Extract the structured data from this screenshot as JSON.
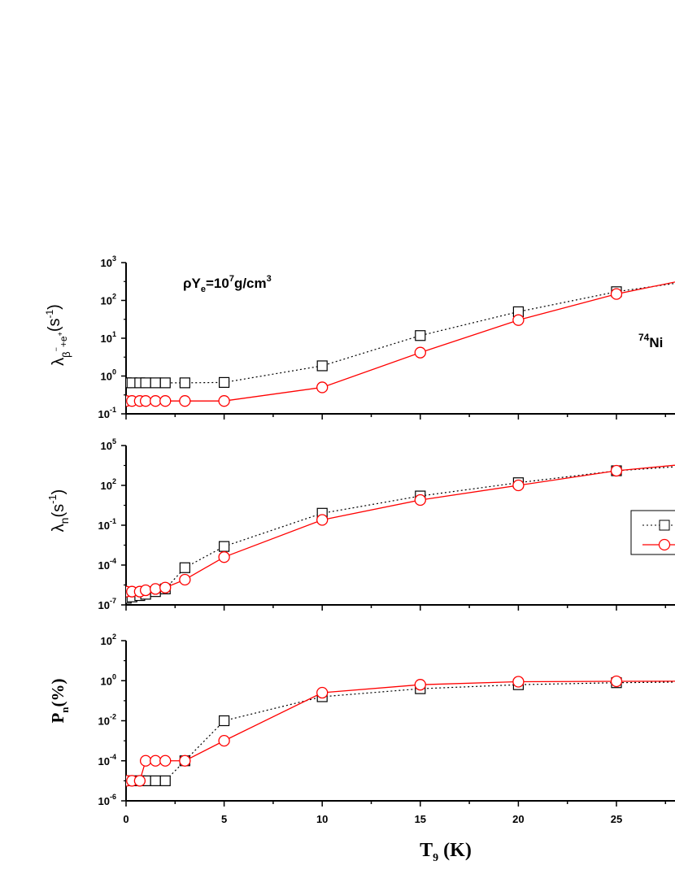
{
  "chart_data": [
    {
      "type": "line",
      "panel": "top",
      "ylabel": "λβ⁻+e⁺(s⁻¹)",
      "ylabel_parts": {
        "base": "λ",
        "sub1": "β",
        "sub1sup": "−",
        "sub_mid": "+e",
        "sub2sup": "+",
        "paren_open": "(s",
        "unit_sup": "-1",
        "paren_close": ")"
      },
      "yscale": "log",
      "ylim_exp": [
        -1,
        3
      ],
      "yticks_exp": [
        -1,
        0,
        1,
        2,
        3
      ],
      "annotations": [
        "ρYe=10⁷g/cm³",
        "⁷⁴Ni"
      ],
      "annotation_parts": {
        "density": {
          "base": "ρY",
          "sub": "e",
          "mid": "=10",
          "sup": "7",
          "rest": "g/cm",
          "sup2": "3"
        },
        "nucleus": {
          "sup": "74",
          "base": "Ni"
        }
      },
      "series": [
        {
          "marker": "square",
          "style": "dotted",
          "color": "#000000",
          "x": [
            0.01,
            0.3,
            0.7,
            1,
            1.5,
            2,
            3,
            5,
            10,
            15,
            20,
            25,
            30
          ],
          "y_exp": [
            -0.18,
            -0.18,
            -0.18,
            -0.18,
            -0.18,
            -0.18,
            -0.18,
            -0.17,
            0.27,
            1.07,
            1.7,
            2.23,
            2.6
          ]
        },
        {
          "marker": "circle",
          "style": "solid",
          "color": "#ff0000",
          "x": [
            0.01,
            0.3,
            0.7,
            1,
            1.5,
            2,
            3,
            5,
            10,
            15,
            20,
            25,
            30
          ],
          "y_exp": [
            -0.66,
            -0.66,
            -0.66,
            -0.66,
            -0.66,
            -0.66,
            -0.66,
            -0.66,
            -0.3,
            0.62,
            1.48,
            2.17,
            2.7
          ]
        }
      ]
    },
    {
      "type": "line",
      "panel": "middle",
      "ylabel": "λn(s⁻¹)",
      "ylabel_parts": {
        "base": "λ",
        "sub": "n",
        "paren_open": "(s",
        "unit_sup": "-1",
        "paren_close": ")"
      },
      "yscale": "log",
      "ylim_exp": [
        -7,
        5
      ],
      "yticks_exp": [
        -7,
        -4,
        -1,
        2,
        5
      ],
      "series": [
        {
          "marker": "square",
          "style": "dotted",
          "color": "#000000",
          "x": [
            0.01,
            0.3,
            0.7,
            1,
            1.5,
            2,
            3,
            5,
            10,
            15,
            20,
            25,
            30
          ],
          "y_exp": [
            -6.5,
            -6.4,
            -6.3,
            -6.2,
            -6.0,
            -5.8,
            -4.2,
            -2.6,
            -0.1,
            1.2,
            2.2,
            3.1,
            3.6
          ]
        },
        {
          "marker": "circle",
          "style": "solid",
          "color": "#ff0000",
          "x": [
            0.01,
            0.3,
            0.7,
            1,
            1.5,
            2,
            3,
            5,
            10,
            15,
            20,
            25,
            30
          ],
          "y_exp": [
            -6.0,
            -6.0,
            -6.0,
            -5.9,
            -5.8,
            -5.7,
            -5.1,
            -3.4,
            -0.6,
            0.9,
            2.0,
            3.1,
            3.8
          ]
        }
      ],
      "legend": {
        "placement": "right",
        "entries": [
          "",
          ""
        ]
      }
    },
    {
      "type": "line",
      "panel": "bottom",
      "ylabel": "Pn(%)",
      "ylabel_parts": {
        "base": "P",
        "sub": "n",
        "rest": "(%)"
      },
      "yscale": "log",
      "ylim_exp": [
        -6,
        2
      ],
      "yticks_exp": [
        -6,
        -4,
        -2,
        0,
        2
      ],
      "xlabel": "T9 (K)",
      "xlabel_parts": {
        "base": "T",
        "sub": "9",
        "rest": " (K)"
      },
      "xlim": [
        0,
        28
      ],
      "xticks": [
        0,
        5,
        10,
        15,
        20,
        25
      ],
      "series": [
        {
          "marker": "square",
          "style": "dotted",
          "color": "#000000",
          "x": [
            0.01,
            0.3,
            0.7,
            1,
            1.5,
            2,
            3,
            5,
            10,
            15,
            20,
            25,
            30
          ],
          "y_exp": [
            -5,
            -5,
            -5,
            -5,
            -5,
            -5,
            -4,
            -2,
            -0.8,
            -0.4,
            -0.2,
            -0.1,
            -0.05
          ]
        },
        {
          "marker": "circle",
          "style": "solid",
          "color": "#ff0000",
          "x": [
            0.01,
            0.3,
            0.7,
            1,
            1.5,
            2,
            3,
            5,
            10,
            15,
            20,
            25,
            30
          ],
          "y_exp": [
            -5,
            -5,
            -5,
            -4,
            -4,
            -4,
            -4,
            -3,
            -0.6,
            -0.2,
            -0.05,
            -0.03,
            -0.02
          ]
        }
      ]
    }
  ]
}
